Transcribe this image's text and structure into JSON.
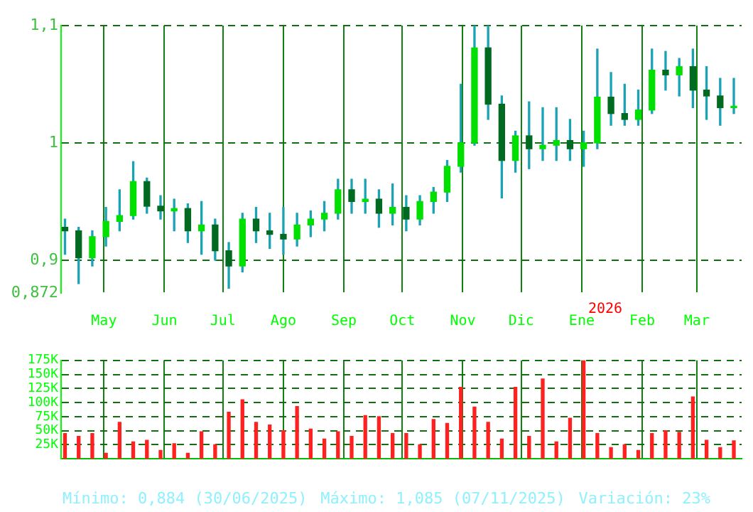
{
  "chart_data": [
    {
      "type": "candlestick",
      "colors": [
        "#006a20",
        "#006a20",
        "#00e000",
        "#00e000",
        "#00e000",
        "#00e000",
        "#006a20",
        "#006a20",
        "#00e000",
        "#006a20",
        "#00e000",
        "#006a20",
        "#006a20",
        "#00e000",
        "#006a20",
        "#006a20",
        "#006a20",
        "#00e000",
        "#00e000",
        "#00e000",
        "#00e000",
        "#006a20",
        "#00e000",
        "#006a20",
        "#00e000",
        "#006a20",
        "#00e000",
        "#00e000",
        "#00e000",
        "#00e000",
        "#00e000",
        "#006a20",
        "#006a20",
        "#00e000",
        "#006a20",
        "#00e000",
        "#00e000",
        "#006a20",
        "#00e000",
        "#00e000",
        "#006a20",
        "#006a20",
        "#00e000",
        "#00e000",
        "#006a20",
        "#00e000",
        "#006a20",
        "#006a20",
        "#006a20",
        "#00e000"
      ],
      "x": [
        "2025-04-11",
        "2025-04-18",
        "2025-04-25",
        "2025-05-02",
        "2025-05-09",
        "2025-05-16",
        "2025-05-23",
        "2025-05-30",
        "2025-06-06",
        "2025-06-13",
        "2025-06-20",
        "2025-06-27",
        "2025-07-04",
        "2025-07-11",
        "2025-07-18",
        "2025-07-25",
        "2025-08-01",
        "2025-08-08",
        "2025-08-15",
        "2025-08-22",
        "2025-08-29",
        "2025-09-05",
        "2025-09-12",
        "2025-09-19",
        "2025-09-26",
        "2025-10-03",
        "2025-10-10",
        "2025-10-17",
        "2025-10-24",
        "2025-10-31",
        "2025-11-07",
        "2025-11-14",
        "2025-11-21",
        "2025-11-28",
        "2025-12-05",
        "2025-12-12",
        "2025-12-19",
        "2025-12-26",
        "2026-01-02",
        "2026-01-09",
        "2026-01-16",
        "2026-01-23",
        "2026-01-30",
        "2026-02-06",
        "2026-02-13",
        "2026-02-20",
        "2026-02-27",
        "2026-03-06",
        "2026-03-13",
        "2026-03-20"
      ],
      "ohlc": [
        [
          0.928,
          0.935,
          0.905,
          0.925
        ],
        [
          0.925,
          0.928,
          0.88,
          0.902
        ],
        [
          0.902,
          0.925,
          0.895,
          0.92
        ],
        [
          0.92,
          0.945,
          0.912,
          0.933
        ],
        [
          0.933,
          0.96,
          0.925,
          0.938
        ],
        [
          0.938,
          0.984,
          0.935,
          0.967
        ],
        [
          0.967,
          0.97,
          0.94,
          0.946
        ],
        [
          0.946,
          0.955,
          0.935,
          0.942
        ],
        [
          0.942,
          0.952,
          0.925,
          0.944
        ],
        [
          0.944,
          0.948,
          0.915,
          0.925
        ],
        [
          0.925,
          0.95,
          0.905,
          0.93
        ],
        [
          0.93,
          0.935,
          0.9,
          0.908
        ],
        [
          0.908,
          0.915,
          0.876,
          0.895
        ],
        [
          0.895,
          0.94,
          0.89,
          0.935
        ],
        [
          0.935,
          0.945,
          0.915,
          0.925
        ],
        [
          0.925,
          0.94,
          0.91,
          0.922
        ],
        [
          0.922,
          0.945,
          0.905,
          0.918
        ],
        [
          0.918,
          0.94,
          0.912,
          0.93
        ],
        [
          0.93,
          0.942,
          0.92,
          0.935
        ],
        [
          0.935,
          0.95,
          0.925,
          0.94
        ],
        [
          0.94,
          0.969,
          0.935,
          0.96
        ],
        [
          0.96,
          0.969,
          0.94,
          0.95
        ],
        [
          0.95,
          0.969,
          0.94,
          0.952
        ],
        [
          0.952,
          0.96,
          0.928,
          0.94
        ],
        [
          0.94,
          0.965,
          0.93,
          0.945
        ],
        [
          0.945,
          0.955,
          0.925,
          0.935
        ],
        [
          0.935,
          0.955,
          0.93,
          0.95
        ],
        [
          0.95,
          0.962,
          0.94,
          0.958
        ],
        [
          0.958,
          0.985,
          0.95,
          0.98
        ],
        [
          0.98,
          1.05,
          0.975,
          1.0
        ],
        [
          1.0,
          1.1,
          0.998,
          1.081
        ],
        [
          1.081,
          1.1,
          1.02,
          1.033
        ],
        [
          1.033,
          1.04,
          0.953,
          0.985
        ],
        [
          0.985,
          1.01,
          0.975,
          1.006
        ],
        [
          1.006,
          1.035,
          0.978,
          0.995
        ],
        [
          0.995,
          1.03,
          0.985,
          0.998
        ],
        [
          0.998,
          1.03,
          0.985,
          1.002
        ],
        [
          1.002,
          1.02,
          0.985,
          0.995
        ],
        [
          0.995,
          1.01,
          0.98,
          1.0
        ],
        [
          1.0,
          1.08,
          0.995,
          1.039
        ],
        [
          1.039,
          1.06,
          1.015,
          1.025
        ],
        [
          1.025,
          1.05,
          1.015,
          1.02
        ],
        [
          1.02,
          1.045,
          1.015,
          1.028
        ],
        [
          1.028,
          1.08,
          1.025,
          1.062
        ],
        [
          1.062,
          1.078,
          1.045,
          1.058
        ],
        [
          1.058,
          1.072,
          1.04,
          1.065
        ],
        [
          1.065,
          1.08,
          1.03,
          1.045
        ],
        [
          1.045,
          1.065,
          1.02,
          1.04
        ],
        [
          1.04,
          1.055,
          1.015,
          1.03
        ],
        [
          1.03,
          1.055,
          1.025,
          1.03
        ]
      ],
      "xlim": [
        "2025-04-09",
        "2026-03-24"
      ],
      "xticks": [
        {
          "value": "2025-05-01",
          "label": "May"
        },
        {
          "value": "2025-06-01",
          "label": "Jun"
        },
        {
          "value": "2025-07-01",
          "label": "Jul"
        },
        {
          "value": "2025-08-01",
          "label": "Ago"
        },
        {
          "value": "2025-09-01",
          "label": "Sep"
        },
        {
          "value": "2025-10-01",
          "label": "Oct"
        },
        {
          "value": "2025-11-01",
          "label": "Nov"
        },
        {
          "value": "2025-12-01",
          "label": "Dic"
        },
        {
          "value": "2026-01-01",
          "label": "Ene"
        },
        {
          "value": "2026-02-01",
          "label": "Feb"
        },
        {
          "value": "2026-03-01",
          "label": "Mar"
        }
      ],
      "ylim": [
        0.872,
        1.1
      ],
      "yticks": [
        {
          "value": 0.872,
          "label": "0,872"
        },
        {
          "value": 0.9,
          "label": "0,9"
        },
        {
          "value": 1,
          "label": "1"
        },
        {
          "value": 1.1,
          "label": "1,1"
        }
      ],
      "grid": true,
      "annotations": [
        "2026"
      ]
    },
    {
      "type": "bar",
      "color": "#ff2020",
      "x": [
        "2025-04-11",
        "2025-04-18",
        "2025-04-25",
        "2025-05-02",
        "2025-05-09",
        "2025-05-16",
        "2025-05-23",
        "2025-05-30",
        "2025-06-06",
        "2025-06-13",
        "2025-06-20",
        "2025-06-27",
        "2025-07-04",
        "2025-07-11",
        "2025-07-18",
        "2025-07-25",
        "2025-08-01",
        "2025-08-08",
        "2025-08-15",
        "2025-08-22",
        "2025-08-29",
        "2025-09-05",
        "2025-09-12",
        "2025-09-19",
        "2025-09-26",
        "2025-10-03",
        "2025-10-10",
        "2025-10-17",
        "2025-10-24",
        "2025-10-31",
        "2025-11-07",
        "2025-11-14",
        "2025-11-21",
        "2025-11-28",
        "2025-12-05",
        "2025-12-12",
        "2025-12-19",
        "2025-12-26",
        "2026-01-02",
        "2026-01-09",
        "2026-01-16",
        "2026-01-23",
        "2026-01-30",
        "2026-02-06",
        "2026-02-13",
        "2026-02-20",
        "2026-02-27",
        "2026-03-06",
        "2026-03-13",
        "2026-03-20"
      ],
      "values": [
        45000,
        40000,
        45000,
        10000,
        65000,
        30000,
        33000,
        15000,
        27000,
        10000,
        48000,
        25000,
        83000,
        105000,
        65000,
        60000,
        50000,
        93000,
        53000,
        35000,
        48000,
        40000,
        77000,
        75000,
        45000,
        45000,
        25000,
        70000,
        63000,
        127000,
        92000,
        65000,
        35000,
        127000,
        40000,
        142000,
        30000,
        72000,
        175000,
        45000,
        20000,
        25000,
        15000,
        45000,
        50000,
        47000,
        110000,
        33000,
        20000,
        32000
      ],
      "xlim": [
        "2025-04-09",
        "2026-03-24"
      ],
      "xticks": [
        {
          "value": "2025-05-01",
          "label": null
        },
        {
          "value": "2025-06-01",
          "label": null
        },
        {
          "value": "2025-07-01",
          "label": null
        },
        {
          "value": "2025-08-01",
          "label": null
        },
        {
          "value": "2025-09-01",
          "label": null
        },
        {
          "value": "2025-10-01",
          "label": null
        },
        {
          "value": "2025-11-01",
          "label": null
        },
        {
          "value": "2025-12-01",
          "label": null
        },
        {
          "value": "2026-01-01",
          "label": null
        },
        {
          "value": "2026-02-01",
          "label": null
        },
        {
          "value": "2026-03-01",
          "label": null
        }
      ],
      "ylim": [
        0,
        175000
      ],
      "yticks": [
        {
          "value": 25000,
          "label": "25K"
        },
        {
          "value": 50000,
          "label": "50K"
        },
        {
          "value": 75000,
          "label": "75K"
        },
        {
          "value": 100000,
          "label": "100K"
        },
        {
          "value": 125000,
          "label": "125K"
        },
        {
          "value": 150000,
          "label": "150K"
        },
        {
          "value": 175000,
          "label": "175K"
        }
      ],
      "grid": true,
      "tick_labels": "y",
      "annotations": [
        "Mínimo: 0,884 (30/06/2025)",
        "Máximo: 1,085 (07/11/2025)",
        "Variación: 23%"
      ]
    }
  ]
}
